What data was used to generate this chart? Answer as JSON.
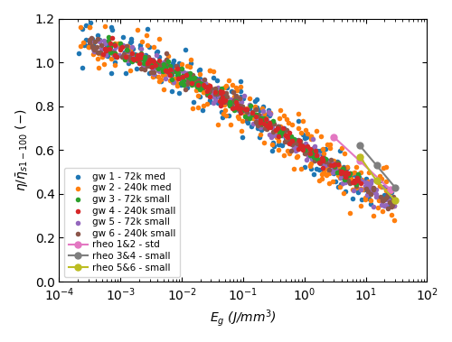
{
  "title": "",
  "xlabel": "$E_g$ (J/mm$^3$)",
  "ylabel": "$\\eta/\\bar{\\eta}_{s1-100}$ (−)",
  "xlim": [
    0.0001,
    100
  ],
  "ylim": [
    0.0,
    1.2
  ],
  "yticks": [
    0.0,
    0.2,
    0.4,
    0.6,
    0.8,
    1.0,
    1.2
  ],
  "series": {
    "gw1": {
      "label": "gw 1 - 72k med",
      "color": "#1f77b4"
    },
    "gw2": {
      "label": "gw 2 - 240k med",
      "color": "#ff7f0e"
    },
    "gw3": {
      "label": "gw 3 - 72k small",
      "color": "#2ca02c"
    },
    "gw4": {
      "label": "gw 4 - 240k small",
      "color": "#d62728"
    },
    "gw5": {
      "label": "gw 5 - 72k small",
      "color": "#9467bd"
    },
    "gw6": {
      "label": "gw 6 - 240k small",
      "color": "#8c564b"
    },
    "rheo12": {
      "label": "rheo 1&2 - std",
      "color": "#e377c2"
    },
    "rheo34": {
      "label": "rheo 3&4 - small",
      "color": "#7f7f7f"
    },
    "rheo56": {
      "label": "rheo 5&6 - small",
      "color": "#bcbd22"
    }
  },
  "legend_loc": "lower left",
  "markersize": 4,
  "linewidth": 1.5,
  "figsize": [
    5.0,
    3.79
  ],
  "dpi": 100
}
